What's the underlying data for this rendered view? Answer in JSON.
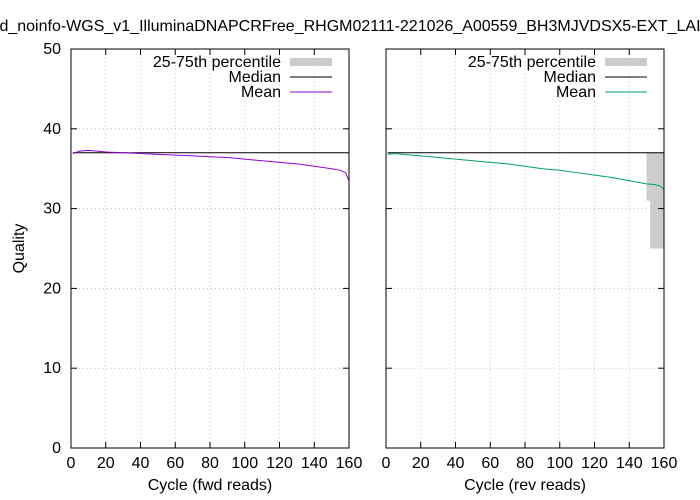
{
  "figure_title": "d_noinfo-WGS_v1_IlluminaDNAPCRFree_RHGM02111-221026_A00559_BH3MJVDSX5-EXT_LAI",
  "chart_data": [
    {
      "type": "line",
      "xlabel": "Cycle (fwd reads)",
      "ylabel": "Quality",
      "xlim": [
        0,
        160
      ],
      "ylim": [
        0,
        50
      ],
      "xticks": [
        0,
        20,
        40,
        60,
        80,
        100,
        120,
        140,
        160
      ],
      "yticks": [
        0,
        10,
        20,
        30,
        40,
        50
      ],
      "grid": true,
      "legend_position": "top-right",
      "legend": [
        "25-75th percentile",
        "Median",
        "Mean"
      ],
      "percentile_band": [],
      "median": {
        "x": [
          1,
          160
        ],
        "y": [
          37,
          37
        ]
      },
      "mean": {
        "x": [
          1,
          5,
          10,
          15,
          20,
          30,
          40,
          50,
          60,
          70,
          80,
          90,
          100,
          110,
          120,
          130,
          140,
          150,
          155,
          158,
          159,
          160
        ],
        "y": [
          36.9,
          37.2,
          37.3,
          37.2,
          37.1,
          37.0,
          36.9,
          36.8,
          36.7,
          36.6,
          36.5,
          36.4,
          36.2,
          36.0,
          35.8,
          35.6,
          35.3,
          35.0,
          34.8,
          34.5,
          34.0,
          33.5
        ]
      },
      "colors": {
        "band": "#cccccc",
        "median": "#000000",
        "mean": "#9400d3"
      }
    },
    {
      "type": "line",
      "xlabel": "Cycle (rev reads)",
      "ylabel": "",
      "xlim": [
        0,
        160
      ],
      "ylim": [
        0,
        50
      ],
      "xticks": [
        0,
        20,
        40,
        60,
        80,
        100,
        120,
        140,
        160
      ],
      "yticks": [
        0,
        10,
        20,
        30,
        40,
        50
      ],
      "grid": true,
      "legend_position": "top-right",
      "legend": [
        "25-75th percentile",
        "Median",
        "Mean"
      ],
      "percentile_band": [
        {
          "x0": 150,
          "x1": 152,
          "q25": 31,
          "q75": 37
        },
        {
          "x0": 152,
          "x1": 160,
          "q25": 25,
          "q75": 37
        }
      ],
      "median": {
        "x": [
          1,
          160
        ],
        "y": [
          37,
          37
        ]
      },
      "mean": {
        "x": [
          1,
          5,
          10,
          20,
          30,
          40,
          50,
          60,
          70,
          80,
          90,
          100,
          110,
          120,
          130,
          140,
          145,
          150,
          155,
          158,
          160
        ],
        "y": [
          36.8,
          36.9,
          36.8,
          36.6,
          36.4,
          36.2,
          36.0,
          35.8,
          35.6,
          35.3,
          35.0,
          34.8,
          34.5,
          34.2,
          33.9,
          33.5,
          33.3,
          33.1,
          33.0,
          32.8,
          32.4
        ]
      },
      "colors": {
        "band": "#cccccc",
        "median": "#000000",
        "mean": "#009e73"
      }
    }
  ]
}
